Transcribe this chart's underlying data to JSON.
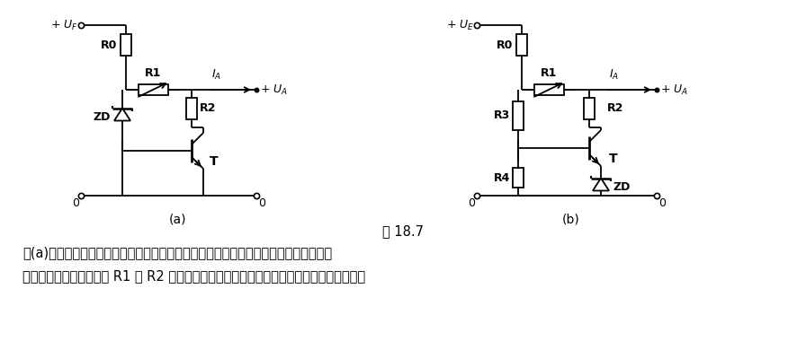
{
  "title_fig": "图 18.7",
  "caption_line1": "图(a)电路输出电压固定，约等于稳压管的击穿电压，稳压管只流过晶体管的基极电流。",
  "caption_line2": "由晶体管、稳压管、电阻 R1 和 R2 构成的电路起着一个有较高功率的稳压管作用，其等效内",
  "label_a": "(a)",
  "label_b": "(b)",
  "bg_color": "#ffffff",
  "line_color": "#000000",
  "font_size_caption": 10.5,
  "font_size_title": 10.5,
  "font_size_label": 10,
  "font_size_component": 9,
  "font_size_node": 9
}
